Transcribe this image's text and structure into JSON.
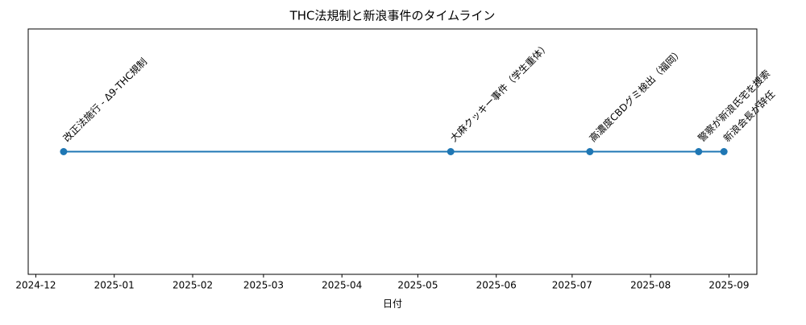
{
  "chart_data": {
    "type": "timeline",
    "title": "THC法規制と新浪事件のタイムライン",
    "xlabel": "日付",
    "x": [
      "2024-12-12",
      "2025-05-14",
      "2025-07-08",
      "2025-08-20",
      "2025-08-30"
    ],
    "values": [
      0,
      0,
      0,
      0,
      0
    ],
    "labels": [
      "改正法施行 - Δ9-THC規制",
      "大麻クッキー事件（学生重体）",
      "高濃度CBDグミ検出（福岡）",
      "警察が新浪氏宅を捜索",
      "新浪会長が辞任"
    ],
    "color": "#1f77b4",
    "xlim": [
      "2024-11-28",
      "2025-09-12"
    ],
    "xticks": [
      "2024-12",
      "2025-01",
      "2025-02",
      "2025-03",
      "2025-04",
      "2025-05",
      "2025-06",
      "2025-07",
      "2025-08",
      "2025-09"
    ],
    "ylim": [
      -1,
      1
    ]
  }
}
